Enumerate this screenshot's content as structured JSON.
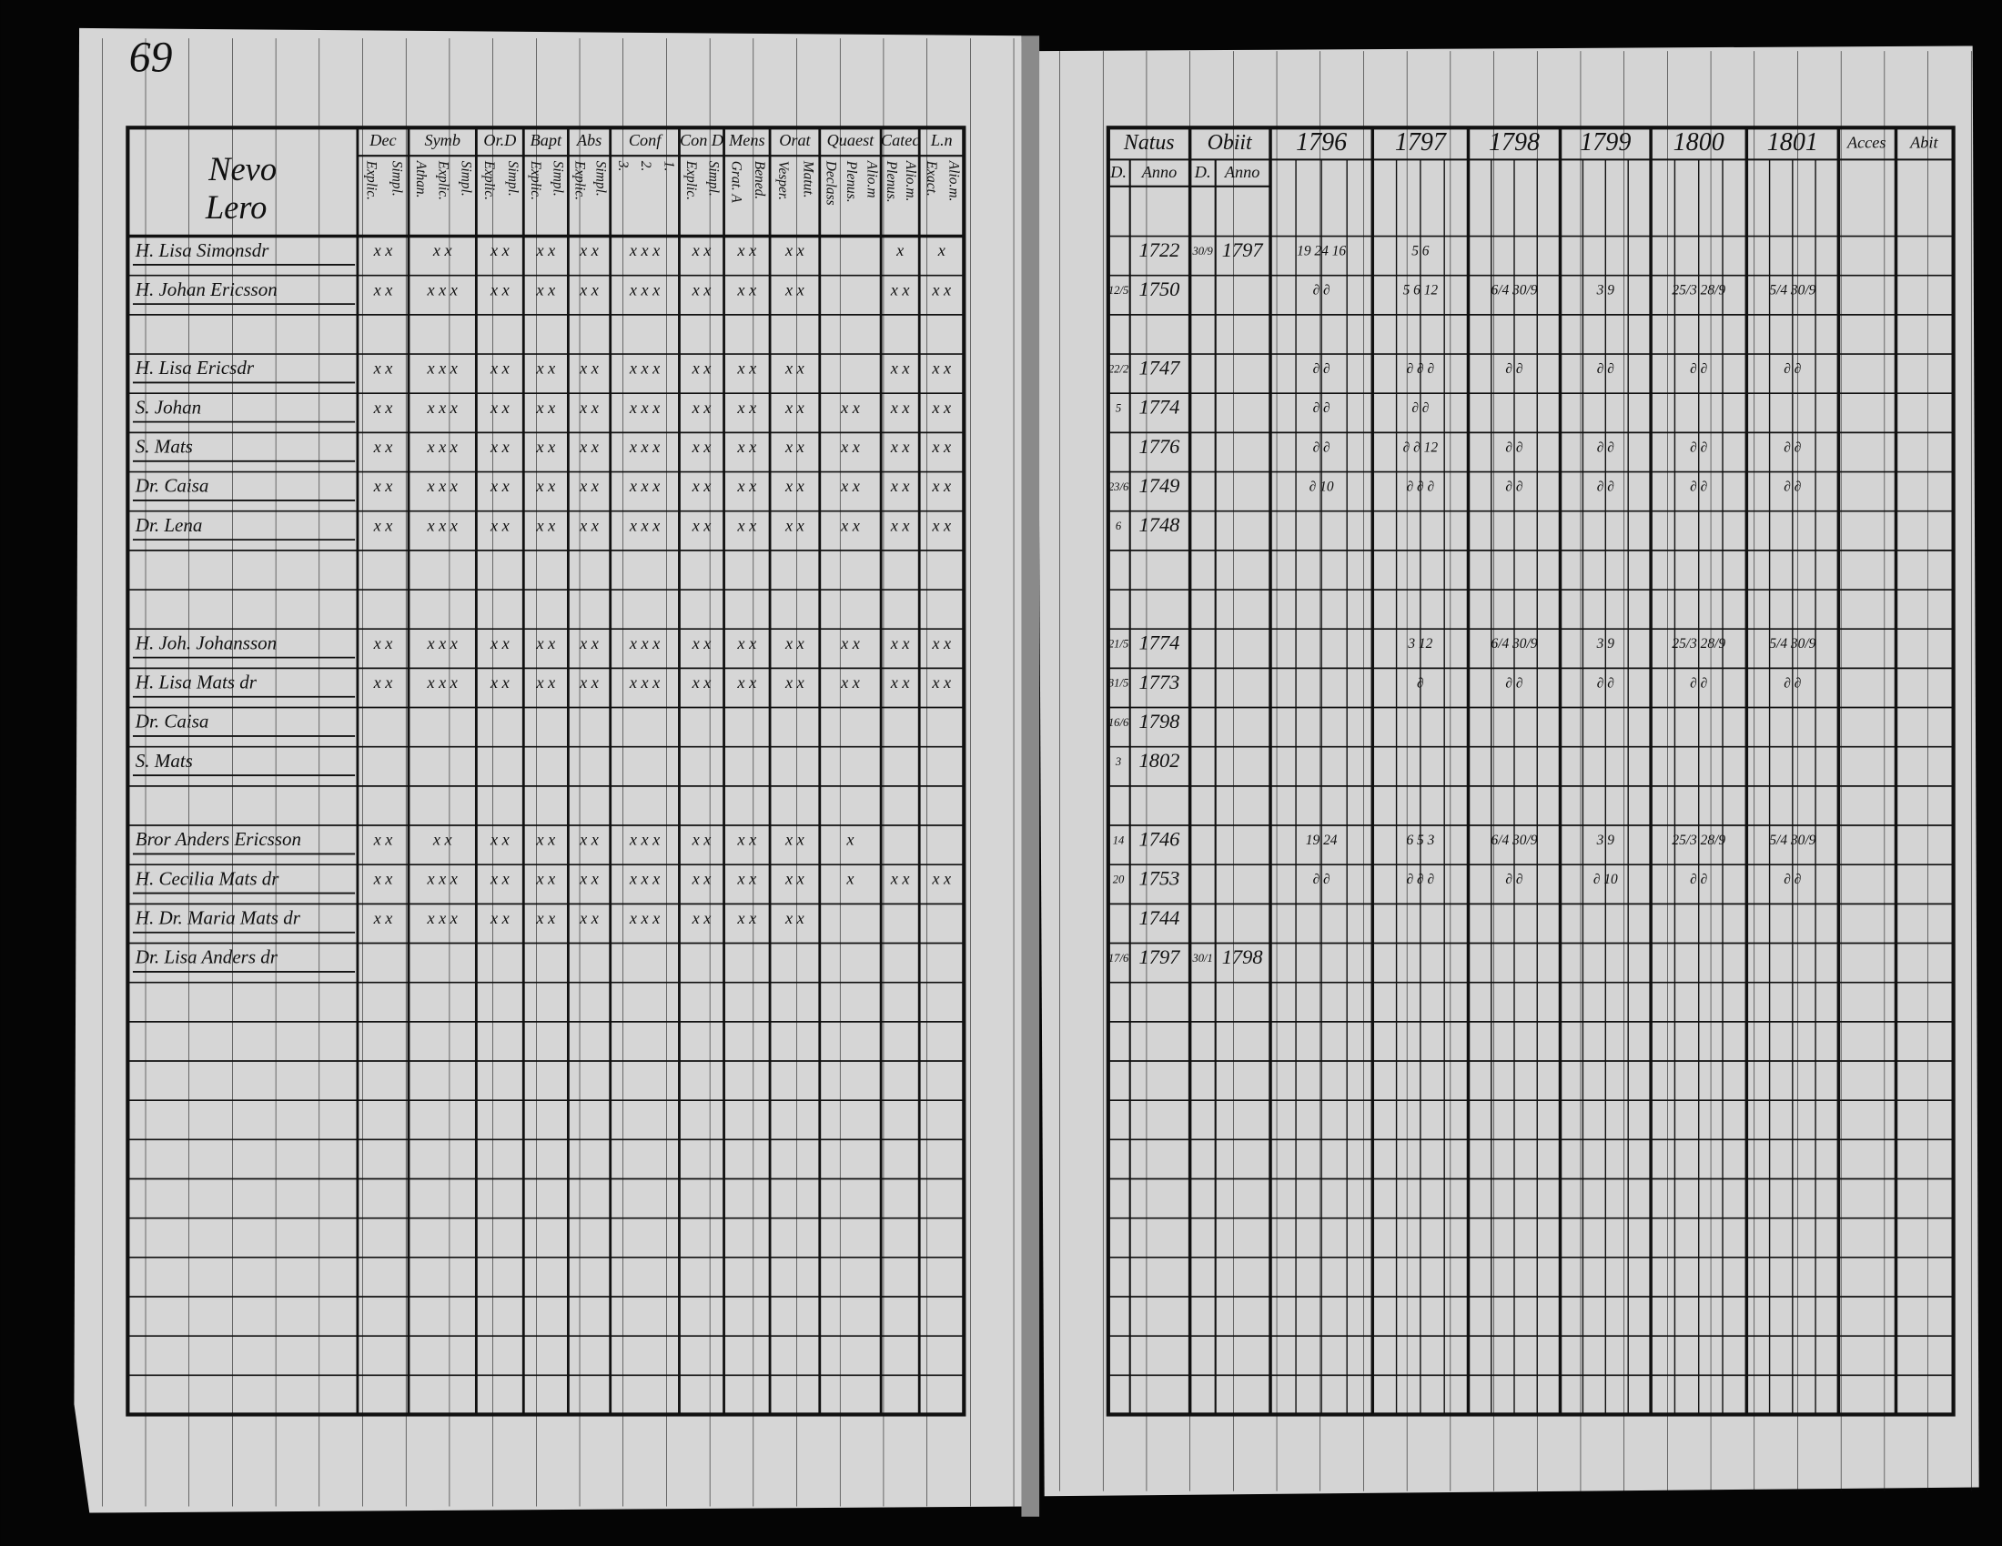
{
  "left_page": {
    "page_number": "69",
    "name_header": [
      "Nevo",
      "Lero"
    ],
    "columns": [
      {
        "title": "Dec",
        "sub": [
          "Explic.",
          "Simpl."
        ]
      },
      {
        "title": "Symb",
        "sub": [
          "Athan.",
          "Explic.",
          "Simpl."
        ]
      },
      {
        "title": "Or.D",
        "sub": [
          "Explic.",
          "Simpl."
        ]
      },
      {
        "title": "Bapt",
        "sub": [
          "Explic.",
          "Simpl."
        ]
      },
      {
        "title": "Abs",
        "sub": [
          "Explic.",
          "Simpl."
        ]
      },
      {
        "title": "Conf",
        "sub": [
          "3.",
          "2.",
          "1."
        ]
      },
      {
        "title": "Con D",
        "sub": [
          "Explic.",
          "Simpl."
        ]
      },
      {
        "title": "Mens",
        "sub": [
          "Grat. A",
          "Bened."
        ]
      },
      {
        "title": "Orat",
        "sub": [
          "Vesper.",
          "Matut."
        ]
      },
      {
        "title": "Quaest",
        "sub": [
          "Declass",
          "Plenus.",
          "Alio.m"
        ]
      },
      {
        "title": "Catec",
        "sub": [
          "Plenus.",
          "Alio.m."
        ]
      },
      {
        "title": "L.n",
        "sub": [
          "Exact.",
          "Alio.m."
        ]
      }
    ]
  },
  "right_page": {
    "natus": "Natus",
    "obiit": "Obiit",
    "sub": [
      "D.",
      "Anno",
      "D.",
      "Anno"
    ],
    "years": [
      "1796",
      "1797",
      "1798",
      "1799",
      "1800",
      "1801"
    ],
    "acces": "Acces",
    "abit": "Abit"
  },
  "households": [
    [
      {
        "name": "H. Lisa Simonsdr",
        "marks": [
          "x x",
          "x x",
          "x x",
          "x x",
          "x x",
          "x x x",
          "x x",
          "x x",
          "x x",
          null,
          "x",
          "x"
        ],
        "natus_year": "1722",
        "obiit_day": "30/9",
        "obiit_year": "1797",
        "notes": [
          "19 24 16",
          "5 6",
          null,
          null,
          null,
          null
        ]
      },
      {
        "name": "H. Johan Ericsson",
        "marks": [
          "x x",
          "x x x",
          "x x",
          "x x",
          "x x",
          "x x x",
          "x x",
          "x x",
          "x x",
          null,
          "x x",
          "x x"
        ],
        "natus_day": "12/5",
        "natus_year": "1750",
        "notes": [
          "∂ ∂",
          "5 6 12",
          "6/4 30/9",
          "3 9",
          "25/3 28/9",
          "5/4 30/9"
        ]
      }
    ],
    [
      {
        "name": "H. Lisa Ericsdr",
        "marks": [
          "x x",
          "x x x",
          "x x",
          "x x",
          "x x",
          "x x x",
          "x x",
          "x x",
          "x x",
          null,
          "x x",
          "x x"
        ],
        "natus_day": "22/2",
        "natus_year": "1747",
        "notes": [
          "∂ ∂",
          "∂ ∂ ∂",
          "∂ ∂",
          "∂ ∂",
          "∂ ∂",
          "∂ ∂"
        ]
      },
      {
        "name": "S. Johan",
        "marks": [
          "x x",
          "x x x",
          "x x",
          "x x",
          "x x",
          "x x x",
          "x x",
          "x x",
          "x x",
          "x x",
          "x x",
          "x x"
        ],
        "natus_day": "5",
        "natus_year": "1774",
        "notes": [
          "∂ ∂",
          "∂ ∂",
          null,
          null,
          null,
          null
        ]
      },
      {
        "name": "S. Mats",
        "marks": [
          "x x",
          "x x x",
          "x x",
          "x x",
          "x x",
          "x x x",
          "x x",
          "x x",
          "x x",
          "x x",
          "x x",
          "x x"
        ],
        "natus_year": "1776",
        "notes": [
          "∂ ∂",
          "∂ ∂ 12",
          "∂ ∂",
          "∂ ∂",
          "∂ ∂",
          "∂ ∂"
        ]
      },
      {
        "name": "Dr. Caisa",
        "marks": [
          "x x",
          "x x x",
          "x x",
          "x x",
          "x x",
          "x x x",
          "x x",
          "x x",
          "x x",
          "x x",
          "x x",
          "x x"
        ],
        "natus_day": "23/6",
        "natus_year": "1749",
        "notes": [
          "∂ 10",
          "∂ ∂ ∂",
          "∂ ∂",
          "∂ ∂",
          "∂ ∂",
          "∂ ∂"
        ]
      },
      {
        "name": "Dr. Lena",
        "marks": [
          "x x",
          "x x x",
          "x x",
          "x x",
          "x x",
          "x x x",
          "x x",
          "x x",
          "x x",
          "x x",
          "x x",
          "x x"
        ],
        "natus_day": "6",
        "natus_year": "1748"
      }
    ],
    [
      {
        "name": "H. Joh. Johansson",
        "marks": [
          "x x",
          "x x x",
          "x x",
          "x x",
          "x x",
          "x x x",
          "x x",
          "x x",
          "x x",
          "x x",
          "x x",
          "x x"
        ],
        "natus_day": "21/5",
        "natus_year": "1774",
        "notes": [
          null,
          "3 12",
          "6/4 30/9",
          "3 9",
          "25/3 28/9",
          "5/4 30/9"
        ]
      },
      {
        "name": "H. Lisa Mats dr",
        "marks": [
          "x x",
          "x x x",
          "x x",
          "x x",
          "x x",
          "x x x",
          "x x",
          "x x",
          "x x",
          "x x",
          "x x",
          "x x"
        ],
        "natus_day": "31/5",
        "natus_year": "1773",
        "notes": [
          null,
          "∂",
          "∂ ∂",
          "∂ ∂",
          "∂ ∂",
          "∂ ∂"
        ]
      },
      {
        "name": "Dr. Caisa",
        "natus_day": "16/6",
        "natus_year": "1798"
      },
      {
        "name": "S. Mats",
        "natus_day": "3",
        "natus_year": "1802"
      }
    ],
    [
      {
        "name": "Bror Anders Ericsson",
        "marks": [
          "x x",
          "x x",
          "x x",
          "x x",
          "x x",
          "x x x",
          "x x",
          "x x",
          "x x",
          "x",
          null,
          null
        ],
        "natus_day": "14",
        "natus_year": "1746",
        "notes": [
          "19 24",
          "6 5 3",
          "6/4 30/9",
          "3 9",
          "25/3 28/9",
          "5/4 30/9"
        ]
      },
      {
        "name": "H. Cecilia Mats dr",
        "marks": [
          "x x",
          "x x x",
          "x x",
          "x x",
          "x x",
          "x x x",
          "x x",
          "x x",
          "x x",
          "x",
          "x x",
          "x x"
        ],
        "natus_day": "20",
        "natus_year": "1753",
        "notes": [
          "∂ ∂",
          "∂ ∂ ∂",
          "∂ ∂",
          "∂ 10",
          "∂ ∂",
          "∂ ∂"
        ]
      },
      {
        "name": "H. Dr. Maria Mats dr",
        "marks": [
          "x x",
          "x x x",
          "x x",
          "x x",
          "x x",
          "x x x",
          "x x",
          "x x",
          "x x",
          null,
          null,
          null
        ],
        "natus_year": "1744"
      },
      {
        "name": "Dr. Lisa Anders dr",
        "natus_day": "17/6",
        "natus_year": "1797",
        "obiit_day": "30/1",
        "obiit_year": "1798"
      }
    ]
  ]
}
